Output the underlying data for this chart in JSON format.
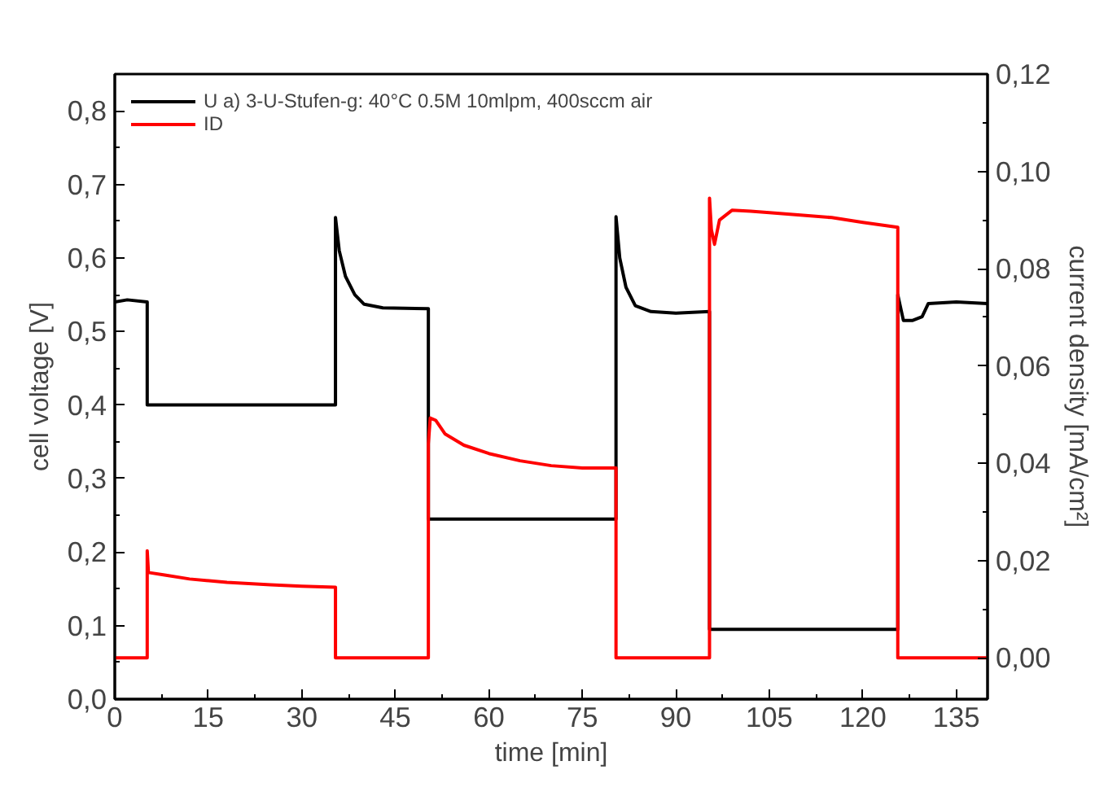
{
  "chart_data": {
    "type": "line",
    "xlabel": "time [min]",
    "ylabel": "cell voltage [V]",
    "y2label": "current density [mA/cm²]",
    "xlim": [
      0,
      140
    ],
    "xticks": [
      0,
      15,
      30,
      45,
      60,
      75,
      90,
      105,
      120,
      135
    ],
    "ylim": [
      0,
      0.85
    ],
    "yticks": [
      {
        "value": 0,
        "label": "0,0"
      },
      {
        "value": 0.1,
        "label": "0,1"
      },
      {
        "value": 0.2,
        "label": "0,2"
      },
      {
        "value": 0.3,
        "label": "0,3"
      },
      {
        "value": 0.4,
        "label": "0,4"
      },
      {
        "value": 0.5,
        "label": "0,5"
      },
      {
        "value": 0.6,
        "label": "0,6"
      },
      {
        "value": 0.7,
        "label": "0,7"
      },
      {
        "value": 0.8,
        "label": "0,8"
      }
    ],
    "y2lim": [
      -0.0085,
      0.12
    ],
    "y2ticks": [
      {
        "value": 0,
        "label": "0,00"
      },
      {
        "value": 0.02,
        "label": "0,02"
      },
      {
        "value": 0.04,
        "label": "0,04"
      },
      {
        "value": 0.06,
        "label": "0,06"
      },
      {
        "value": 0.08,
        "label": "0,08"
      },
      {
        "value": 0.1,
        "label": "0,10"
      },
      {
        "value": 0.12,
        "label": "0,12"
      }
    ],
    "grid": false,
    "legend": "top left",
    "line_style": "solid",
    "marker": "none",
    "series": [
      {
        "name": "U a) 3-U-Stufen-g: 40°C 0.5M 10mlpm, 400sccm air",
        "color": "#000000",
        "x": [
          0,
          2,
          5.2,
          5.2,
          20,
          35.4,
          35.4,
          36,
          37,
          38.5,
          40,
          43,
          50.3,
          50.3,
          65,
          80.4,
          80.4,
          81,
          82,
          83.5,
          86,
          90,
          95.4,
          95.4,
          110,
          125.6,
          125.6,
          126.5,
          128,
          129.5,
          130.5,
          135,
          140
        ],
        "values": [
          0.54,
          0.543,
          0.54,
          0.4,
          0.4,
          0.4,
          0.655,
          0.61,
          0.575,
          0.55,
          0.537,
          0.532,
          0.531,
          0.245,
          0.245,
          0.245,
          0.656,
          0.6,
          0.56,
          0.535,
          0.527,
          0.525,
          0.527,
          0.095,
          0.095,
          0.095,
          0.55,
          0.515,
          0.515,
          0.52,
          0.538,
          0.54,
          0.538
        ]
      },
      {
        "name": "ID",
        "color": "#ff0000",
        "axis": "y2",
        "x": [
          0,
          5.2,
          5.2,
          5.4,
          5.6,
          8,
          12,
          18,
          25,
          30,
          35.4,
          35.4,
          50.3,
          50.3,
          50.6,
          51.5,
          53,
          56,
          60,
          65,
          70,
          75,
          80.4,
          80.4,
          95.4,
          95.4,
          95.7,
          96.2,
          97,
          99,
          102,
          105,
          110,
          115,
          120,
          125.6,
          125.6,
          140
        ],
        "values": [
          0,
          0,
          0.022,
          0.0175,
          0.0175,
          0.017,
          0.0162,
          0.0155,
          0.015,
          0.0147,
          0.0145,
          0,
          0,
          0.044,
          0.0493,
          0.0488,
          0.046,
          0.0437,
          0.042,
          0.0405,
          0.0395,
          0.039,
          0.039,
          0,
          0,
          0.0945,
          0.088,
          0.085,
          0.09,
          0.092,
          0.0918,
          0.0915,
          0.091,
          0.0905,
          0.0895,
          0.0885,
          0,
          0
        ]
      }
    ]
  }
}
